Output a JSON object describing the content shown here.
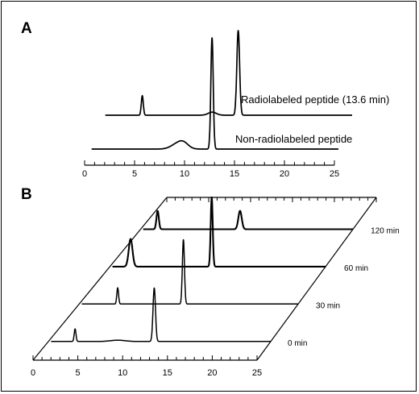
{
  "chart_data": [
    {
      "panel": "A",
      "type": "line",
      "xlim": [
        0,
        25
      ],
      "x_ticks": [
        "0",
        "5",
        "10",
        "15",
        "20",
        "25"
      ],
      "series": [
        {
          "name": "Non-radiolabeled peptide",
          "baseline_start_x": 0.3,
          "peaks": [
            {
              "x": 8.8,
              "height": 0.04,
              "width": 0.6
            },
            {
              "x": 9.5,
              "height": 0.05,
              "width": 0.5
            },
            {
              "x": 12.35,
              "height": 1.0,
              "width": 0.12
            }
          ]
        },
        {
          "name": "Radiolabeled peptide (13.6 min)",
          "baseline_start_x": 0.3,
          "peaks": [
            {
              "x": 4.0,
              "height": 0.19,
              "width": 0.1
            },
            {
              "x": 11.0,
              "height": 0.03,
              "width": 0.4
            },
            {
              "x": 13.6,
              "height": 0.82,
              "width": 0.14
            }
          ]
        }
      ]
    },
    {
      "panel": "B",
      "type": "line",
      "xlim": [
        0,
        25
      ],
      "x_ticks": [
        "0",
        "5",
        "10",
        "15",
        "20",
        "25"
      ],
      "series": [
        {
          "name": "0 min",
          "baseline_start_x": 0.3,
          "peaks": [
            {
              "x": 3.0,
              "height": 0.2,
              "width": 0.1
            },
            {
              "x": 7.8,
              "height": 0.02,
              "width": 0.8
            },
            {
              "x": 11.9,
              "height": 0.85,
              "width": 0.14
            }
          ]
        },
        {
          "name": "30 min",
          "baseline_start_x": 0.3,
          "peaks": [
            {
              "x": 4.4,
              "height": 0.24,
              "width": 0.1
            },
            {
              "x": 11.9,
              "height": 0.95,
              "width": 0.12
            }
          ]
        },
        {
          "name": "60 min",
          "baseline_start_x": 0.3,
          "peaks": [
            {
              "x": 2.4,
              "height": 0.4,
              "width": 0.22
            },
            {
              "x": 11.8,
              "height": 1.0,
              "width": 0.12
            }
          ]
        },
        {
          "name": "120 min",
          "baseline_start_x": 0.3,
          "peaks": [
            {
              "x": 2.0,
              "height": 0.38,
              "width": 0.14
            },
            {
              "x": 11.7,
              "height": 0.38,
              "width": 0.2
            }
          ]
        }
      ]
    }
  ]
}
